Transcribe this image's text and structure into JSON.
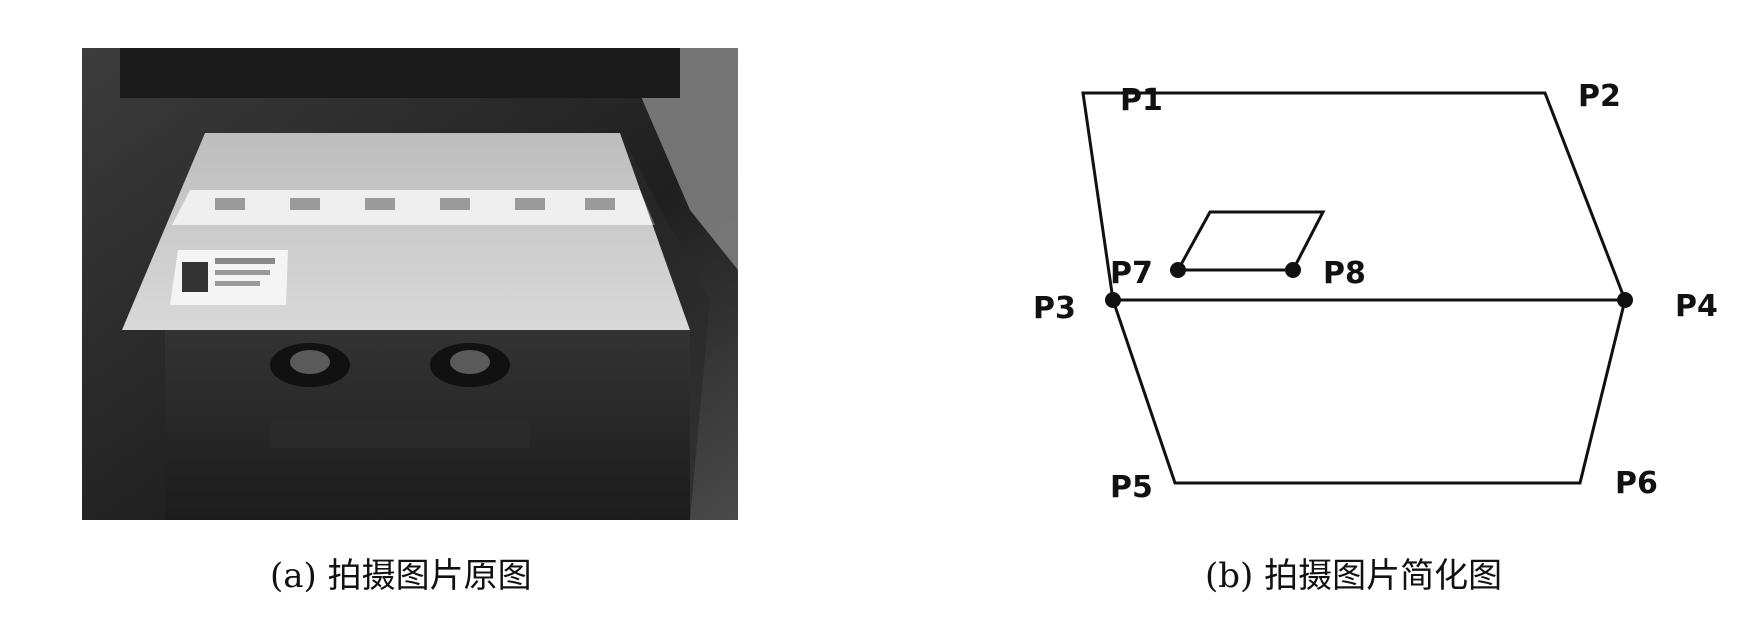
{
  "captions": {
    "a": "(a) 拍摄图片原图",
    "b": "(b) 拍摄图片简化图"
  },
  "diagram": {
    "points": [
      {
        "id": "P1",
        "label": "P1"
      },
      {
        "id": "P2",
        "label": "P2"
      },
      {
        "id": "P3",
        "label": "P3"
      },
      {
        "id": "P4",
        "label": "P4"
      },
      {
        "id": "P5",
        "label": "P5"
      },
      {
        "id": "P6",
        "label": "P6"
      },
      {
        "id": "P7",
        "label": "P7"
      },
      {
        "id": "P8",
        "label": "P8"
      }
    ]
  },
  "photo": {
    "subject": "photograph of a cardboard box with a shipping label",
    "colors": {
      "dark": "#2a2a2a",
      "box_top": "#d9d9d9",
      "box_side": "#3a3a3a"
    }
  }
}
